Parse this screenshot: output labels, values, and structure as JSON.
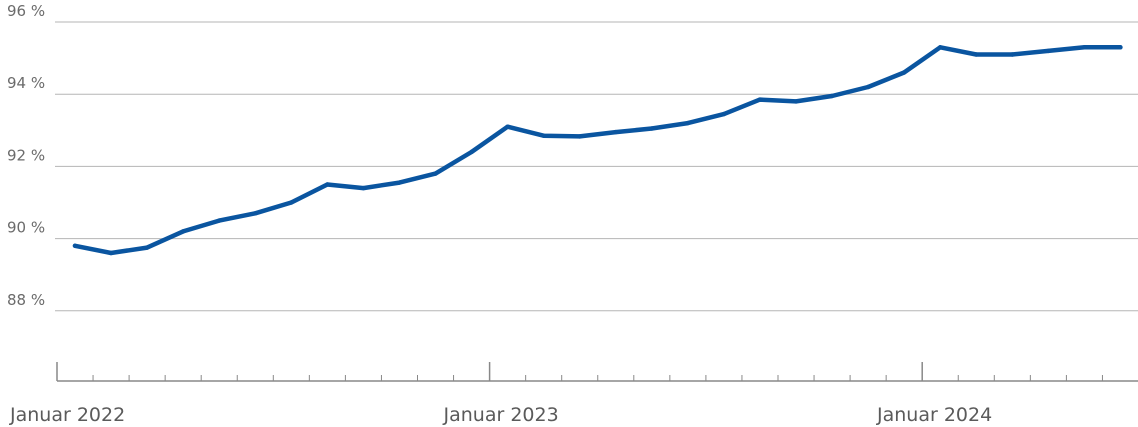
{
  "chart_data": {
    "type": "line",
    "title": "",
    "xlabel": "",
    "ylabel": "",
    "ylim": [
      86.2,
      96
    ],
    "y_ticks": [
      88,
      90,
      92,
      94,
      96
    ],
    "y_tick_labels": [
      "88 %",
      "90 %",
      "92 %",
      "94 %",
      "96 %"
    ],
    "x_tick_labels": [
      "Januar 2022",
      "Januar 2023",
      "Januar 2024"
    ],
    "grid": true,
    "legend": "none",
    "colors": {
      "line": "#0a55a0",
      "grid": "#b5b5b5",
      "axis": "#888888"
    },
    "series": [
      {
        "x": [
          "2022-01",
          "2022-02",
          "2022-03",
          "2022-04",
          "2022-05",
          "2022-06",
          "2022-07",
          "2022-08",
          "2022-09",
          "2022-10",
          "2022-11",
          "2022-12",
          "2023-01",
          "2023-02",
          "2023-03",
          "2023-04",
          "2023-05",
          "2023-06",
          "2023-07",
          "2023-08",
          "2023-09",
          "2023-10",
          "2023-11",
          "2023-12",
          "2024-01",
          "2024-02",
          "2024-03",
          "2024-04",
          "2024-05",
          "2024-06"
        ],
        "values": [
          89.8,
          89.6,
          89.75,
          90.2,
          90.5,
          90.7,
          91.0,
          91.5,
          91.4,
          91.55,
          91.8,
          92.4,
          93.1,
          92.85,
          92.83,
          92.95,
          93.05,
          93.2,
          93.45,
          93.85,
          93.8,
          93.95,
          94.2,
          94.6,
          95.3,
          95.1,
          95.1,
          95.2,
          95.3,
          95.3
        ]
      }
    ]
  }
}
